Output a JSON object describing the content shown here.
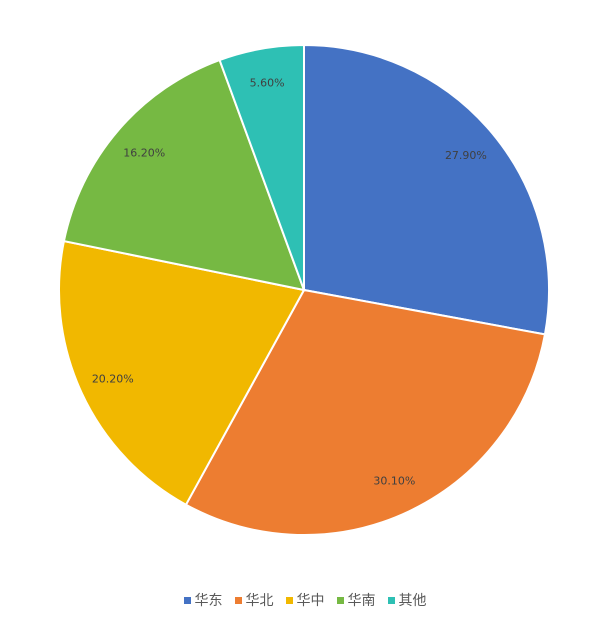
{
  "chart_data": {
    "type": "pie",
    "categories": [
      "华东",
      "华北",
      "华中",
      "华南",
      "其他"
    ],
    "values": [
      27.9,
      30.1,
      20.2,
      16.2,
      5.6
    ],
    "data_labels": [
      "27.90%",
      "30.10%",
      "20.20%",
      "16.20%",
      "5.60%"
    ],
    "colors": [
      "#4472C4",
      "#ED7D31",
      "#F1B800",
      "#76B943",
      "#2EC0B4"
    ],
    "start_angle": "top, clockwise",
    "legend_position": "bottom"
  }
}
